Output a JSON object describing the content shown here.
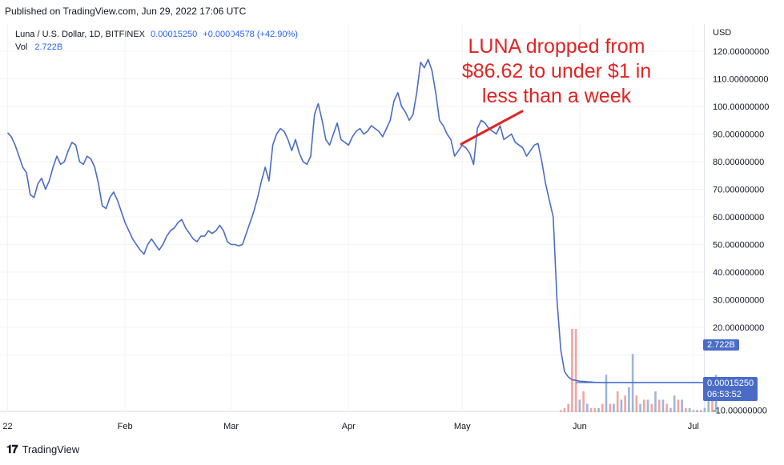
{
  "header": {
    "published": "Published on TradingView.com, Jun 29, 2022 17:06 UTC"
  },
  "legend": {
    "symbol": "Luna / U.S. Dollar, 1D, BITFINEX",
    "last": "0.00015250",
    "change": "+0.00004578 (+42.90%)",
    "vol_label": "Vol",
    "vol_value": "2.722B"
  },
  "axis": {
    "currency": "USD"
  },
  "annotation": {
    "lines": [
      "LUNA dropped from",
      "$86.62 to under $1 in",
      "less than a week"
    ]
  },
  "price_tag": {
    "price": "0.00015250",
    "countdown": "06:53:52",
    "volume": "2.722B"
  },
  "footer": {
    "brand": "TradingView"
  },
  "colors": {
    "price_line": "#4a6cc7",
    "volume_up": "#9db6d6",
    "volume_down": "#f5a3a3",
    "annotation": "#e02424"
  },
  "chart_data": {
    "type": "line",
    "title": "Luna / U.S. Dollar, 1D, BITFINEX",
    "ylabel": "USD",
    "ylim": [
      -10,
      125
    ],
    "yticks": [
      120,
      110,
      100,
      90,
      80,
      70,
      60,
      50,
      40,
      30,
      20,
      10,
      -10
    ],
    "ytick_labels": [
      "120.00000000",
      "110.00000000",
      "100.00000000",
      "90.00000000",
      "80.00000000",
      "70.00000000",
      "60.00000000",
      "50.00000000",
      "40.00000000",
      "30.00000000",
      "20.00000000",
      "",
      "-10.00000000"
    ],
    "xticks": [
      "22",
      "Feb",
      "Mar",
      "Apr",
      "May",
      "Jun",
      "Jul"
    ],
    "xtick_days": [
      0,
      31,
      59,
      90,
      120,
      151,
      181
    ],
    "x_range_days": [
      -2,
      184
    ],
    "grid": true,
    "series": [
      {
        "values": [
          90.5,
          89,
          86,
          82,
          78,
          76,
          68,
          67,
          72,
          74,
          70,
          73,
          78,
          82,
          79,
          80,
          84,
          87,
          86,
          80,
          79,
          82,
          81,
          78,
          72,
          64,
          63,
          67,
          69,
          66,
          62,
          58,
          55,
          52,
          50,
          48,
          46.5,
          50,
          52,
          50,
          48,
          50,
          53,
          55,
          56,
          58,
          59,
          56,
          54,
          52,
          51,
          53,
          53,
          55,
          54,
          55,
          57,
          55,
          51,
          50,
          50,
          49.5,
          50,
          54,
          58,
          62,
          67,
          73,
          78,
          73,
          86,
          90,
          92,
          91,
          88,
          84,
          88,
          83,
          80,
          79,
          82,
          97,
          101,
          95,
          88,
          86,
          90,
          94,
          88,
          87,
          86,
          89,
          91,
          92,
          90,
          91,
          93,
          92,
          91,
          89,
          92,
          95,
          102,
          105,
          100,
          98,
          95,
          97,
          105,
          116,
          114,
          117,
          113,
          105,
          95,
          93,
          90,
          88,
          82,
          84,
          86,
          85,
          83,
          79,
          92,
          95,
          94,
          92,
          91,
          90,
          93,
          88,
          89,
          90,
          87,
          86,
          85,
          82,
          84,
          86,
          86.6,
          80,
          72,
          66,
          60,
          30,
          12,
          4,
          2,
          1,
          0.8,
          0.5,
          0.4,
          0.3,
          0.2,
          0.1,
          0.05,
          0.01,
          0.005,
          0.002,
          0.001,
          0.001,
          0.001,
          0.001,
          0.001,
          0.001,
          0.001,
          0.001,
          0.001,
          0.001,
          0.001,
          0.001,
          0.001,
          0.001,
          0.001,
          0.001,
          0.001,
          0.001,
          0.001,
          0.001,
          0.001,
          0.001,
          0.001,
          0.001,
          0.001,
          0.001,
          0.00015
        ]
      }
    ],
    "volume": {
      "start_day": 146,
      "values": [
        0.5,
        1,
        2,
        20,
        20,
        3,
        5,
        2,
        1,
        1,
        1,
        2,
        9,
        2,
        2,
        5,
        3,
        4,
        6,
        14,
        4,
        2,
        3,
        3,
        2,
        5,
        3,
        3,
        2,
        1,
        4,
        3,
        3,
        1,
        1,
        0.5,
        0.5,
        0.5,
        1,
        4,
        3,
        9
      ],
      "up": [
        false,
        false,
        false,
        false,
        false,
        true,
        false,
        true,
        false,
        false,
        true,
        false,
        true,
        false,
        true,
        false,
        true,
        false,
        true,
        true,
        false,
        true,
        false,
        true,
        false,
        true,
        false,
        true,
        false,
        true,
        true,
        false,
        true,
        false,
        true,
        false,
        true,
        false,
        true,
        true,
        false,
        true
      ]
    }
  }
}
